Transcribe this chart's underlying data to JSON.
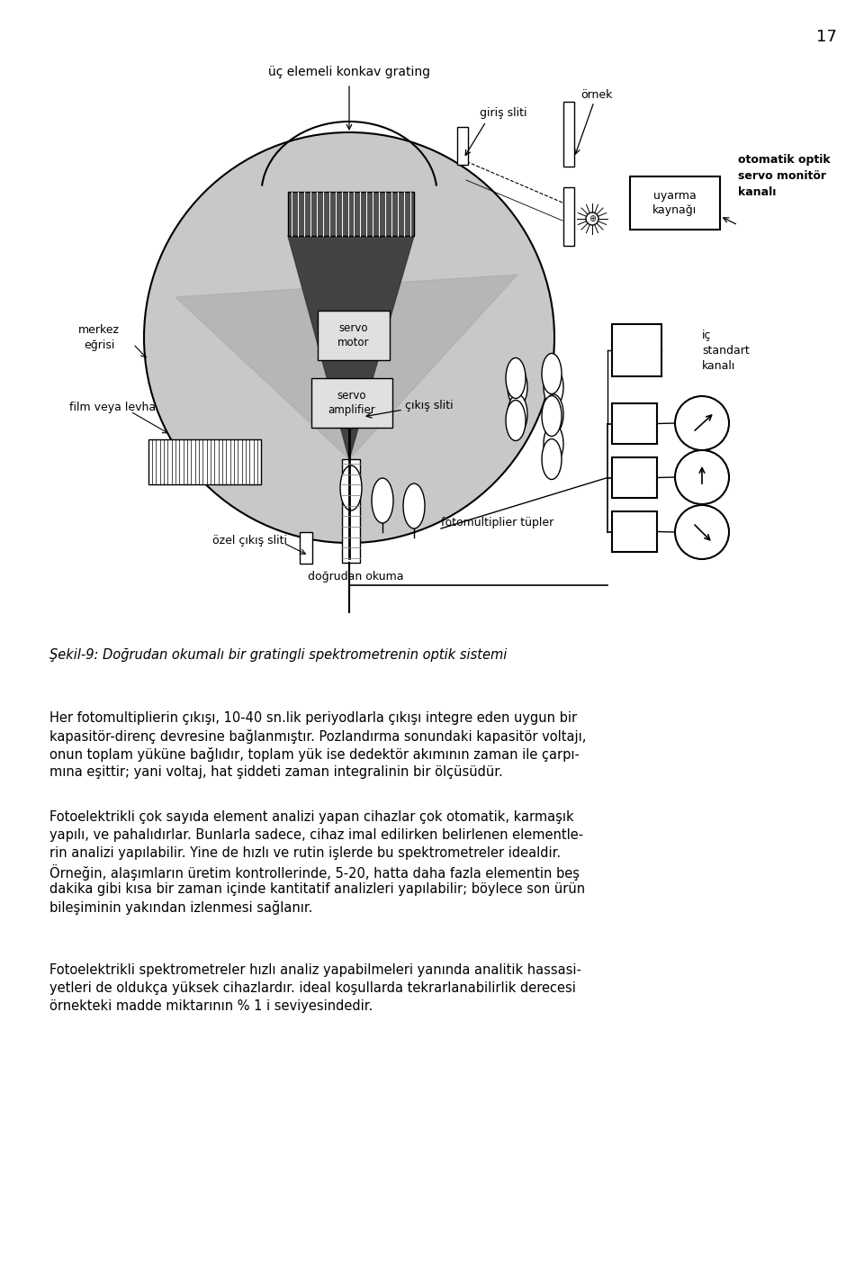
{
  "page_number": "17",
  "bg_color": "#ffffff",
  "label_uc_elemeli": "üç elemeli konkav grating",
  "label_giris_sliti": "giriş sliti",
  "label_ornek": "örnek",
  "label_uyarma": "uyarma\nkaynağı",
  "label_servo_motor": "servo\nmotor",
  "label_servo_amp": "servo\namplifier",
  "label_cikis_sliti": "çıkış sliti",
  "label_merkez": "merkez\neğrisi",
  "label_film": "film veya levha",
  "label_ozel": "özel çıkış sliti",
  "label_fotomult": "fotomultiplier tüpler",
  "label_dogrudan": "doğrudan okuma",
  "label_oto_optik": "otomatik optik\nservo monitör\nkanalı",
  "label_ic_standart": "iç\nstandart\nkanalı",
  "figure_caption": "Şekil-9: Doğrudan okumalı bir gratingli spektrometrenin optik sistemi",
  "para1_line1": "Her fotomultiplierin çıkışı, 10-40 sn.lik periyodlarla çıkışı integre eden uygun bir",
  "para1_line2": "kapasitör-direnç devresine bağlanmıştır. Pozlandırma sonundaki kapasitör voltajı,",
  "para1_line3": "onun toplam yüküne bağlıdır, toplam yük ise dedektör akımının zaman ile çarpı-",
  "para1_line4": "mına eşittir; yani voltaj, hat şiddeti zaman integralinin bir ölçüsüdür.",
  "para2_line1": "Fotoelektrikli çok sayıda element analizi yapan cihazlar çok otomatik, karmaşık",
  "para2_line2": "yapılı, ve pahalıdırlar. Bunlarla sadece, cihaz imal edilirken belirlenen elementle-",
  "para2_line3": "rin analizi yapılabilir. Yine de hızlı ve rutin işlerde bu spektrometreler idealdir.",
  "para2_line4": "Örneğin, alaşımların üretim kontrollerinde, 5-20, hatta daha fazla elementin beş",
  "para2_line5": "dakika gibi kısa bir zaman içinde kantitatif analizleri yapılabilir; böylece son ürün",
  "para2_line6": "bileşiminin yakından izlenmesi sağlanır.",
  "para3_line1": "Fotoelektrikli spektrometreler hızlı analiz yapabilmeleri yanında analitik hassasi-",
  "para3_line2": "yetleri de oldukça yüksek cihazlardır. ideal koşullarda tekrarlanabilirlik derecesi",
  "para3_line3": "örnekteki madde miktarının % 1 i seviyesindedir."
}
